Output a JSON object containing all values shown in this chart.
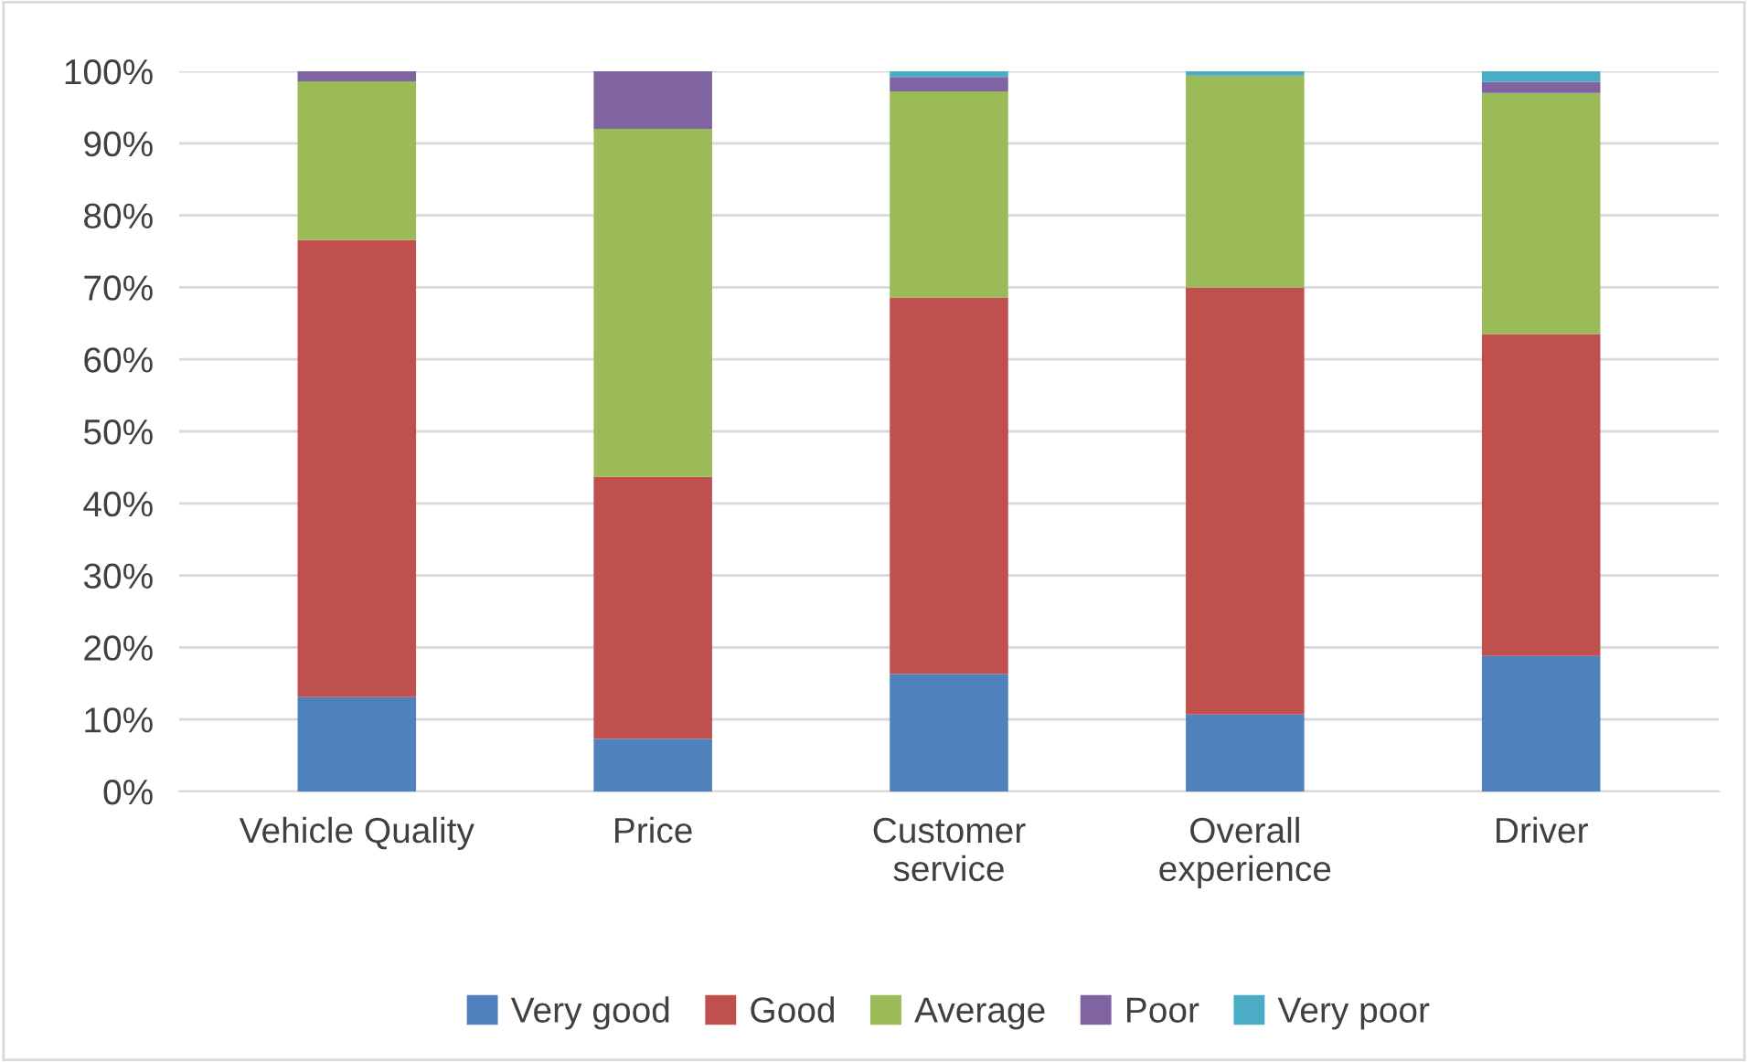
{
  "chart_data": {
    "type": "bar",
    "stacked": true,
    "categories": [
      "Vehicle Quality",
      "Price",
      "Customer\nservice",
      "Overall\nexperience",
      "Driver"
    ],
    "series": [
      {
        "name": "Very good",
        "color": "#4f81bd",
        "values": [
          13.1,
          7.3,
          16.3,
          10.7,
          18.8
        ]
      },
      {
        "name": "Good",
        "color": "#c0504d",
        "values": [
          63.5,
          36.4,
          52.3,
          59.3,
          44.7
        ]
      },
      {
        "name": "Average",
        "color": "#9bbb59",
        "values": [
          22.0,
          48.3,
          28.6,
          29.4,
          33.5
        ]
      },
      {
        "name": "Poor",
        "color": "#8064a2",
        "values": [
          1.4,
          8.0,
          2.0,
          null,
          1.5
        ]
      },
      {
        "name": "Very poor",
        "color": "#4bacc6",
        "values": [
          null,
          null,
          0.8,
          0.6,
          1.5
        ]
      }
    ],
    "ylim": [
      0,
      100
    ],
    "yticks": [
      {
        "value": 0,
        "label": "0%"
      },
      {
        "value": 10,
        "label": "10%"
      },
      {
        "value": 20,
        "label": "20%"
      },
      {
        "value": 30,
        "label": "30%"
      },
      {
        "value": 40,
        "label": "40%"
      },
      {
        "value": 50,
        "label": "50%"
      },
      {
        "value": 60,
        "label": "60%"
      },
      {
        "value": 70,
        "label": "70%"
      },
      {
        "value": 80,
        "label": "80%"
      },
      {
        "value": 90,
        "label": "90%"
      },
      {
        "value": 100,
        "label": "100%"
      }
    ],
    "grid": "y",
    "legend": "bottom"
  }
}
